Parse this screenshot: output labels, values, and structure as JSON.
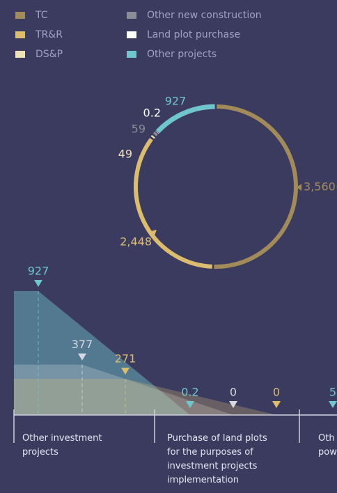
{
  "legend": [
    {
      "name": "TC",
      "color": "#a38b59"
    },
    {
      "name": "TR&R",
      "color": "#dcbd6e"
    },
    {
      "name": "DS&P",
      "color": "#efe1b6"
    },
    {
      "name": "Other new construction",
      "color": "#8c8c94"
    },
    {
      "name": "Land plot purchase",
      "color": "#ffffff"
    },
    {
      "name": "Other projects",
      "color": "#6fc6cb"
    }
  ],
  "chart_data": [
    {
      "type": "donut",
      "values": [
        3560,
        2448,
        49,
        59,
        0.2,
        927
      ],
      "value_labels": [
        "3,560",
        "2,448",
        "49",
        "59",
        "0.2",
        "927"
      ],
      "colors": [
        "#a38b59",
        "#dcbd6e",
        "#efe1b6",
        "#8c8c94",
        "#ffffff",
        "#6fc6cb"
      ]
    },
    {
      "type": "area",
      "categories": [
        [
          "Other investment",
          "projects"
        ],
        [
          "Purchase of land plots",
          "for the purposes of",
          "investment projects",
          "implementation"
        ],
        [
          "Oth",
          "pow"
        ]
      ],
      "series": [
        {
          "color": "#6fc6cb",
          "values": [
            927,
            0.2,
            5
          ]
        },
        {
          "color": "#d8d8e0",
          "values": [
            377,
            0,
            null
          ]
        },
        {
          "color": "#dcbd6e",
          "values": [
            271,
            0,
            null
          ]
        }
      ]
    }
  ]
}
